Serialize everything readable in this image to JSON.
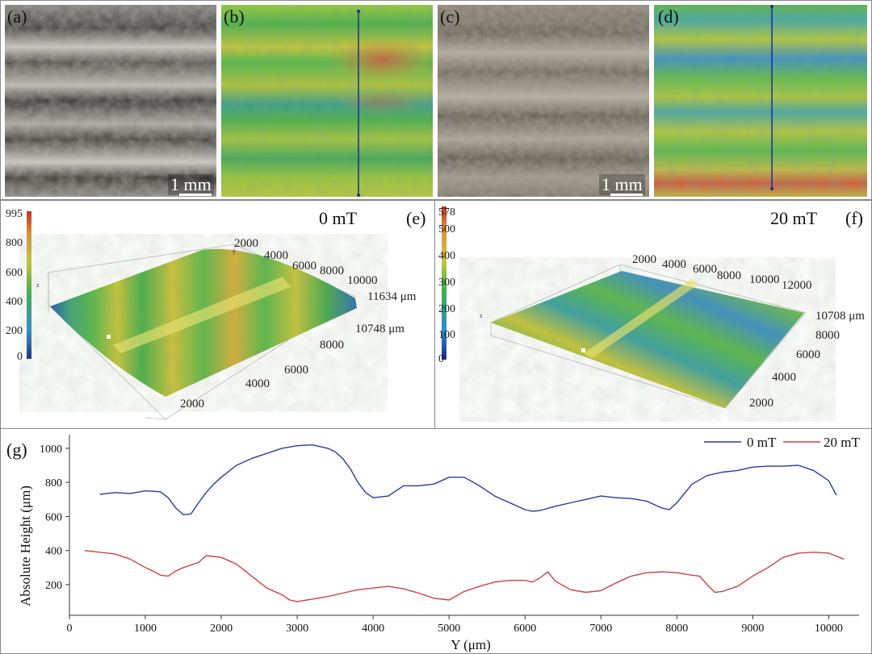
{
  "panels": {
    "a": {
      "label": "(a)",
      "scale": "1 mm"
    },
    "b": {
      "label": "(b)"
    },
    "c": {
      "label": "(c)",
      "scale": "1 mm"
    },
    "d": {
      "label": "(d)"
    },
    "e": {
      "label": "(e)",
      "field": "0 mT",
      "colorbar_ticks": [
        "995",
        "800",
        "600",
        "400",
        "200",
        "0"
      ],
      "z_label": "z",
      "y_label": "y",
      "back_axis_ticks": [
        "2000",
        "4000",
        "6000",
        "8000",
        "10000"
      ],
      "back_axis_end": "11634 μm",
      "side_axis_end": "10748 μm",
      "side_axis_ticks": [
        "8000",
        "6000",
        "4000",
        "2000"
      ]
    },
    "f": {
      "label": "(f)",
      "field": "20 mT",
      "colorbar_ticks": [
        "578",
        "500",
        "400",
        "300",
        "200",
        "100",
        "0"
      ],
      "z_label": "z",
      "back_axis_ticks": [
        "2000",
        "4000",
        "6000",
        "8000",
        "10000",
        "12000"
      ],
      "back_axis_end": "10708 μm",
      "side_axis_ticks": [
        "8000",
        "6000",
        "4000",
        "2000"
      ]
    }
  },
  "chart_data": {
    "type": "line",
    "panel_label": "(g)",
    "title": "",
    "xlabel": "Y (μm)",
    "ylabel": "Absolute Height (μm)",
    "xlim": [
      0,
      10400
    ],
    "ylim": [
      20,
      1080
    ],
    "xticks": [
      0,
      1000,
      2000,
      3000,
      4000,
      5000,
      6000,
      7000,
      8000,
      9000,
      10000
    ],
    "yticks": [
      200,
      400,
      600,
      800,
      1000
    ],
    "legend_position": "top-right",
    "series": [
      {
        "name": "0 mT",
        "color": "#2b3aa0",
        "x": [
          400,
          600,
          800,
          1000,
          1200,
          1300,
          1400,
          1500,
          1600,
          1700,
          1800,
          1900,
          2000,
          2200,
          2400,
          2600,
          2800,
          3000,
          3200,
          3400,
          3500,
          3600,
          3700,
          3800,
          3900,
          4000,
          4200,
          4400,
          4600,
          4800,
          5000,
          5200,
          5400,
          5600,
          5800,
          6000,
          6100,
          6200,
          6400,
          6600,
          6800,
          7000,
          7200,
          7400,
          7600,
          7800,
          7900,
          8000,
          8200,
          8400,
          8600,
          8800,
          9000,
          9200,
          9400,
          9600,
          9800,
          10000,
          10100
        ],
        "values": [
          730,
          740,
          735,
          750,
          745,
          710,
          650,
          610,
          615,
          680,
          740,
          790,
          830,
          900,
          940,
          970,
          1000,
          1015,
          1020,
          1000,
          980,
          940,
          880,
          800,
          740,
          710,
          720,
          780,
          780,
          790,
          830,
          830,
          780,
          720,
          680,
          640,
          630,
          635,
          660,
          680,
          700,
          720,
          710,
          705,
          690,
          650,
          640,
          680,
          790,
          840,
          860,
          870,
          890,
          895,
          895,
          900,
          870,
          810,
          725
        ]
      },
      {
        "name": "20 mT",
        "color": "#d04040",
        "x": [
          200,
          400,
          600,
          800,
          1000,
          1100,
          1200,
          1300,
          1400,
          1500,
          1700,
          1800,
          2000,
          2200,
          2400,
          2600,
          2800,
          2900,
          3000,
          3200,
          3400,
          3600,
          3800,
          4000,
          4200,
          4400,
          4600,
          4800,
          5000,
          5200,
          5400,
          5600,
          5800,
          6000,
          6100,
          6200,
          6300,
          6400,
          6600,
          6800,
          7000,
          7200,
          7400,
          7600,
          7800,
          8000,
          8200,
          8300,
          8400,
          8500,
          8600,
          8800,
          9000,
          9200,
          9400,
          9600,
          9800,
          10000,
          10200
        ],
        "values": [
          400,
          390,
          380,
          350,
          300,
          280,
          255,
          250,
          280,
          300,
          330,
          370,
          360,
          320,
          250,
          180,
          140,
          110,
          100,
          115,
          130,
          150,
          170,
          180,
          190,
          175,
          150,
          120,
          110,
          160,
          190,
          215,
          225,
          225,
          215,
          240,
          275,
          220,
          170,
          155,
          165,
          210,
          250,
          270,
          275,
          270,
          255,
          250,
          200,
          155,
          160,
          190,
          250,
          300,
          360,
          385,
          390,
          385,
          350
        ]
      }
    ]
  }
}
